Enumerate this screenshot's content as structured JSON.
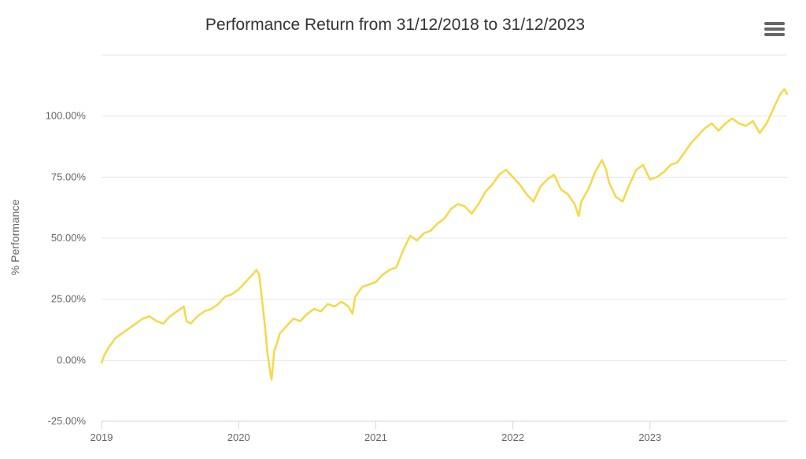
{
  "chart_data": {
    "type": "line",
    "title": "Performance Return from 31/12/2018 to 31/12/2023",
    "ylabel": "% Performance",
    "xlabel": "",
    "xlim": [
      2019.0,
      2024.0
    ],
    "ylim": [
      -25,
      125
    ],
    "y_ticks": [
      {
        "value": -25,
        "label": "-25.00%"
      },
      {
        "value": 0,
        "label": "0.00%"
      },
      {
        "value": 25,
        "label": "25.00%"
      },
      {
        "value": 50,
        "label": "50.00%"
      },
      {
        "value": 75,
        "label": "75.00%"
      },
      {
        "value": 100,
        "label": "100.00%"
      }
    ],
    "x_ticks": [
      {
        "value": 2019,
        "label": "2019"
      },
      {
        "value": 2020,
        "label": "2020"
      },
      {
        "value": 2021,
        "label": "2021"
      },
      {
        "value": 2022,
        "label": "2022"
      },
      {
        "value": 2023,
        "label": "2023"
      }
    ],
    "grid": true,
    "legend": "none",
    "series": [
      {
        "color": "#f5d94e",
        "points": [
          [
            2019.0,
            -1
          ],
          [
            2019.02,
            2
          ],
          [
            2019.05,
            5
          ],
          [
            2019.1,
            9
          ],
          [
            2019.15,
            11
          ],
          [
            2019.2,
            13
          ],
          [
            2019.25,
            15
          ],
          [
            2019.3,
            17
          ],
          [
            2019.35,
            18
          ],
          [
            2019.4,
            16
          ],
          [
            2019.45,
            15
          ],
          [
            2019.5,
            18
          ],
          [
            2019.55,
            20
          ],
          [
            2019.6,
            22
          ],
          [
            2019.62,
            16
          ],
          [
            2019.65,
            15
          ],
          [
            2019.7,
            18
          ],
          [
            2019.75,
            20
          ],
          [
            2019.8,
            21
          ],
          [
            2019.85,
            23
          ],
          [
            2019.9,
            26
          ],
          [
            2019.95,
            27
          ],
          [
            2020.0,
            29
          ],
          [
            2020.05,
            32
          ],
          [
            2020.1,
            35
          ],
          [
            2020.13,
            37
          ],
          [
            2020.15,
            35
          ],
          [
            2020.17,
            25
          ],
          [
            2020.19,
            15
          ],
          [
            2020.21,
            3
          ],
          [
            2020.23,
            -5
          ],
          [
            2020.24,
            -8
          ],
          [
            2020.26,
            4
          ],
          [
            2020.28,
            7
          ],
          [
            2020.3,
            11
          ],
          [
            2020.35,
            14
          ],
          [
            2020.4,
            17
          ],
          [
            2020.45,
            16
          ],
          [
            2020.5,
            19
          ],
          [
            2020.55,
            21
          ],
          [
            2020.6,
            20
          ],
          [
            2020.65,
            23
          ],
          [
            2020.7,
            22
          ],
          [
            2020.75,
            24
          ],
          [
            2020.8,
            22
          ],
          [
            2020.83,
            19
          ],
          [
            2020.85,
            26
          ],
          [
            2020.9,
            30
          ],
          [
            2020.95,
            31
          ],
          [
            2021.0,
            32
          ],
          [
            2021.05,
            35
          ],
          [
            2021.1,
            37
          ],
          [
            2021.15,
            38
          ],
          [
            2021.2,
            45
          ],
          [
            2021.25,
            51
          ],
          [
            2021.3,
            49
          ],
          [
            2021.35,
            52
          ],
          [
            2021.4,
            53
          ],
          [
            2021.45,
            56
          ],
          [
            2021.5,
            58
          ],
          [
            2021.55,
            62
          ],
          [
            2021.6,
            64
          ],
          [
            2021.65,
            63
          ],
          [
            2021.7,
            60
          ],
          [
            2021.75,
            64
          ],
          [
            2021.8,
            69
          ],
          [
            2021.85,
            72
          ],
          [
            2021.9,
            76
          ],
          [
            2021.95,
            78
          ],
          [
            2022.0,
            75
          ],
          [
            2022.05,
            72
          ],
          [
            2022.1,
            68
          ],
          [
            2022.15,
            65
          ],
          [
            2022.2,
            71
          ],
          [
            2022.25,
            74
          ],
          [
            2022.3,
            76
          ],
          [
            2022.35,
            70
          ],
          [
            2022.4,
            68
          ],
          [
            2022.45,
            64
          ],
          [
            2022.48,
            59
          ],
          [
            2022.5,
            65
          ],
          [
            2022.55,
            70
          ],
          [
            2022.6,
            77
          ],
          [
            2022.65,
            82
          ],
          [
            2022.68,
            78
          ],
          [
            2022.7,
            73
          ],
          [
            2022.75,
            67
          ],
          [
            2022.8,
            65
          ],
          [
            2022.85,
            72
          ],
          [
            2022.9,
            78
          ],
          [
            2022.95,
            80
          ],
          [
            2023.0,
            74
          ],
          [
            2023.05,
            75
          ],
          [
            2023.1,
            77
          ],
          [
            2023.15,
            80
          ],
          [
            2023.2,
            81
          ],
          [
            2023.25,
            85
          ],
          [
            2023.3,
            89
          ],
          [
            2023.35,
            92
          ],
          [
            2023.4,
            95
          ],
          [
            2023.45,
            97
          ],
          [
            2023.5,
            94
          ],
          [
            2023.55,
            97
          ],
          [
            2023.6,
            99
          ],
          [
            2023.65,
            97
          ],
          [
            2023.7,
            96
          ],
          [
            2023.75,
            98
          ],
          [
            2023.8,
            93
          ],
          [
            2023.85,
            97
          ],
          [
            2023.9,
            103
          ],
          [
            2023.95,
            109
          ],
          [
            2023.98,
            111
          ],
          [
            2024.0,
            109
          ]
        ]
      }
    ]
  }
}
